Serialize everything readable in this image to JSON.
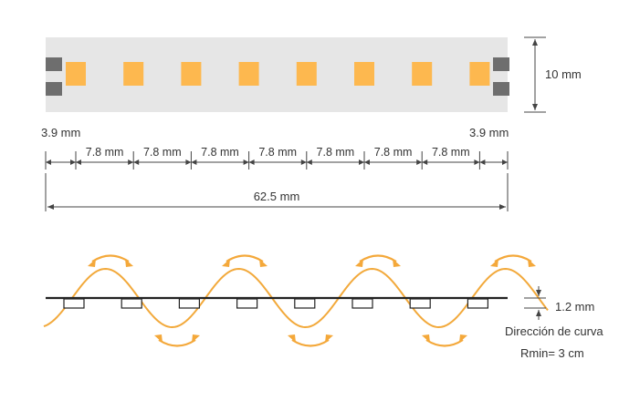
{
  "colors": {
    "led": "#FDB84F",
    "strip": "#E6E6E6",
    "pad": "#6E6E6E",
    "wave": "#F2A93B",
    "arrow": "#F4A83A",
    "line": "#444444",
    "text": "#333333"
  },
  "strip": {
    "led_count": 8,
    "height_label": "10 mm"
  },
  "dimensions": {
    "edge_left": "3.9 mm",
    "edge_right": "3.9 mm",
    "pitch_labels": [
      "7.8 mm",
      "7.8 mm",
      "7.8 mm",
      "7.8 mm",
      "7.8 mm",
      "7.8 mm",
      "7.8 mm"
    ],
    "total_length": "62.5 mm"
  },
  "bend": {
    "thickness_label": "1.2 mm",
    "direction_label": "Dirección de curva",
    "radius_label": "Rmin= 3 cm",
    "chip_count": 8,
    "arrow_pairs": 7
  }
}
